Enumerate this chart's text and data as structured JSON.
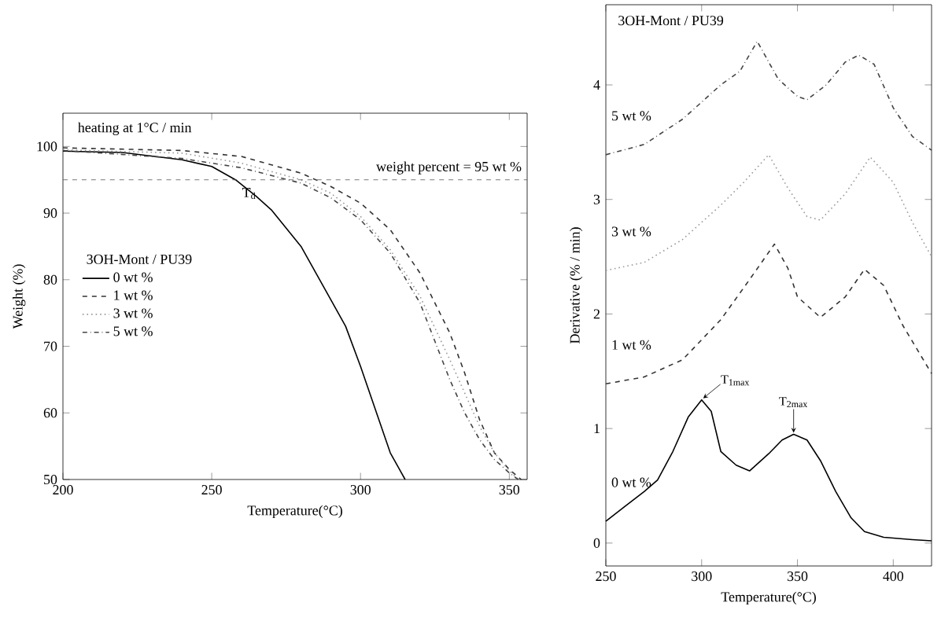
{
  "chart_data": [
    {
      "type": "line",
      "xlabel": "Temperature(°C)",
      "ylabel": "Weight (%)",
      "legend_title": "3OH-Mont / PU39",
      "legend": "left",
      "grid": false,
      "xlim": [
        200,
        356
      ],
      "ylim": [
        50,
        105
      ],
      "xticks": [
        200,
        250,
        300,
        350
      ],
      "yticks": [
        50,
        60,
        70,
        80,
        90,
        100
      ],
      "annotations": [
        "heating at 1°C / min",
        {
          "text": "T$_{d}$",
          "x": 258,
          "y": 95
        }
      ],
      "ref_lines": [
        {
          "axis": "y",
          "value": 95,
          "label": "weight percent = 95 wt %",
          "line_style": "dashed",
          "color": "#555555"
        }
      ],
      "series": [
        {
          "name": "0 wt %",
          "color": "#000000",
          "line_style": "solid",
          "x": [
            200,
            220,
            240,
            250,
            258,
            265,
            270,
            280,
            290,
            295,
            300,
            305,
            310,
            315
          ],
          "values": [
            99.3,
            99.1,
            98,
            97,
            95,
            92.5,
            90.5,
            85,
            77,
            73,
            67,
            60.5,
            54,
            50
          ]
        },
        {
          "name": "1 wt %",
          "color": "#333333",
          "line_style": "dashed",
          "x": [
            200,
            240,
            260,
            280,
            290,
            300,
            310,
            320,
            330,
            335,
            340,
            345,
            350,
            354
          ],
          "values": [
            99.8,
            99.4,
            98.5,
            96,
            94,
            91.5,
            87.5,
            81,
            72,
            66,
            59,
            54,
            51.5,
            50
          ]
        },
        {
          "name": "3 wt %",
          "color": "#999999",
          "line_style": "dotted",
          "x": [
            200,
            240,
            260,
            280,
            290,
            300,
            310,
            320,
            330,
            335,
            340,
            345,
            350,
            353
          ],
          "values": [
            99.5,
            99,
            97.5,
            95,
            93,
            89.5,
            84.5,
            77.5,
            68,
            63,
            58,
            54,
            51.3,
            50
          ]
        },
        {
          "name": "5 wt %",
          "color": "#444444",
          "line_style": "dashdot",
          "x": [
            200,
            240,
            260,
            280,
            290,
            300,
            310,
            320,
            330,
            335,
            340,
            345,
            350,
            353
          ],
          "values": [
            99.4,
            98.2,
            96.8,
            94.5,
            92.3,
            89,
            84,
            76.5,
            65,
            60,
            56,
            53,
            51,
            50
          ]
        }
      ]
    },
    {
      "type": "line",
      "title": "3OH-Mont / PU39",
      "xlabel": "Temperature(°C)",
      "ylabel": "Derivative (% / min)",
      "legend": false,
      "grid": false,
      "xlim": [
        250,
        420
      ],
      "ylim": [
        -0.2,
        4.7
      ],
      "xticks": [
        250,
        300,
        350,
        400
      ],
      "yticks": [
        0,
        1,
        2,
        3,
        4
      ],
      "annotations": [
        {
          "text": "T$_{1max}$",
          "x": 300,
          "y": 1.25
        },
        {
          "text": "T$_{2max}$",
          "x": 348,
          "y": 0.95
        }
      ],
      "series": [
        {
          "name": "0 wt %",
          "color": "#000000",
          "line_style": "solid",
          "x": [
            250,
            260,
            270,
            277,
            285,
            293,
            300,
            305,
            310,
            318,
            325,
            335,
            342,
            348,
            355,
            362,
            370,
            378,
            385,
            395,
            410,
            420
          ],
          "values": [
            0.19,
            0.32,
            0.45,
            0.55,
            0.8,
            1.1,
            1.25,
            1.15,
            0.8,
            0.68,
            0.63,
            0.78,
            0.9,
            0.95,
            0.9,
            0.72,
            0.45,
            0.22,
            0.1,
            0.05,
            0.03,
            0.02
          ]
        },
        {
          "name": "1 wt %",
          "color": "#333333",
          "line_style": "dashed",
          "x": [
            250,
            270,
            290,
            310,
            325,
            338,
            345,
            350,
            362,
            375,
            385,
            395,
            405,
            420
          ],
          "values": [
            1.39,
            1.45,
            1.6,
            1.95,
            2.3,
            2.61,
            2.4,
            2.15,
            1.97,
            2.15,
            2.39,
            2.25,
            1.9,
            1.48
          ]
        },
        {
          "name": "3 wt %",
          "color": "#999999",
          "line_style": "dotted",
          "x": [
            250,
            270,
            290,
            310,
            322,
            335,
            345,
            355,
            362,
            375,
            388,
            400,
            410,
            420
          ],
          "values": [
            2.38,
            2.45,
            2.65,
            2.95,
            3.15,
            3.39,
            3.1,
            2.85,
            2.82,
            3.05,
            3.37,
            3.15,
            2.8,
            2.5
          ]
        },
        {
          "name": "5 wt %",
          "color": "#444444",
          "line_style": "dashdot",
          "x": [
            250,
            270,
            290,
            310,
            320,
            329,
            340,
            350,
            355,
            365,
            375,
            382,
            390,
            400,
            410,
            420
          ],
          "values": [
            3.39,
            3.48,
            3.7,
            4.0,
            4.12,
            4.38,
            4.05,
            3.9,
            3.87,
            4.0,
            4.2,
            4.26,
            4.18,
            3.8,
            3.55,
            3.43
          ]
        }
      ]
    }
  ]
}
